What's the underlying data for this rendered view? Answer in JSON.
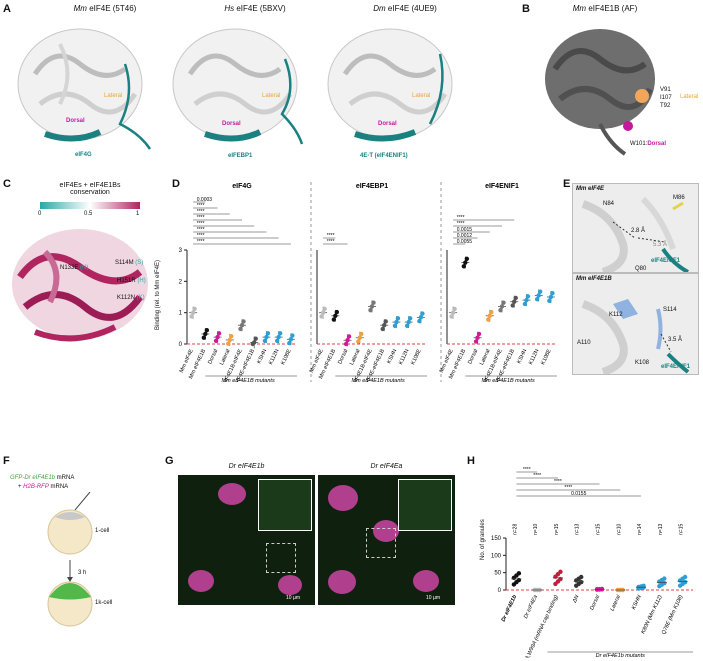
{
  "panelA": {
    "letter": "A",
    "structures": [
      {
        "species": "Mm",
        "title": "eIF4E (5T46)",
        "partner": "eIF4G"
      },
      {
        "species": "Hs",
        "title": "eIF4E (5BXV)",
        "partner": "eIFEBP1"
      },
      {
        "species": "Dm",
        "title": "eIF4E (4UE9)",
        "partner": "4E-T (eIF4ENIF1)"
      }
    ],
    "lateral": "Lateral",
    "dorsal": "Dorsal"
  },
  "panelB": {
    "letter": "B",
    "species": "Mm",
    "title": "eIF4E1B (AF)",
    "residues": [
      "V91",
      "I107",
      "T92"
    ],
    "lateral": "Lateral",
    "dorsal_residue": "W101:",
    "dorsal": "Dorsal"
  },
  "panelC": {
    "letter": "C",
    "title_line1": "eIF4Es + eIF4E1Bs",
    "title_line2": "conservation",
    "scale_ticks": [
      "0",
      "0.5",
      "1"
    ],
    "labels": [
      {
        "text": "N133E",
        "code": "(N)"
      },
      {
        "text": "S114M",
        "code": "(S)"
      },
      {
        "text": "H151R",
        "code": "(H)"
      },
      {
        "text": "K112N",
        "code": "(K)"
      }
    ]
  },
  "panelD": {
    "letter": "D",
    "ylabel": "Binding (rel. to Mm eIF4E)",
    "chart_data": [
      {
        "type": "scatter",
        "title": "eIF4G",
        "ylim": [
          0,
          3
        ],
        "categories": [
          "Mm eIF4E",
          "Mm eIF4E1B",
          "Dorsal",
          "Lateral",
          "eIF4E1B-eIF4E",
          "eIF4E-eIF4E1B",
          "KSHN",
          "K112N",
          "K108E"
        ],
        "means": [
          1.0,
          0.32,
          0.22,
          0.13,
          0.6,
          0.05,
          0.22,
          0.22,
          0.15
        ],
        "pvalues": [
          "0.0003",
          "****",
          "****",
          "****",
          "****",
          "****",
          "****",
          "****"
        ],
        "group_label": "Mm eIF4E1B mutants"
      },
      {
        "type": "scatter",
        "title": "eIF4EBP1",
        "ylim": [
          0,
          3
        ],
        "categories": [
          "Mm eIF4E",
          "Mm eIF4E1B",
          "Dorsal",
          "Lateral",
          "eIF4E1B-eIF4E",
          "eIF4E-eIF4E1B",
          "KSHN",
          "K112N",
          "K108E"
        ],
        "means": [
          1.0,
          0.9,
          0.12,
          0.2,
          1.2,
          0.6,
          0.7,
          0.7,
          0.85
        ],
        "pvalues": [
          "****",
          "****"
        ],
        "group_label": "Mm eIF4E1B mutants"
      },
      {
        "type": "scatter",
        "title": "eIF4ENIF1",
        "ylim": [
          0,
          3
        ],
        "categories": [
          "Mm eIF4E",
          "Mm eIF4E1B",
          "Dorsal",
          "Lateral",
          "eIF4E1B-eIF4E",
          "eIF4E-eIF4E1B",
          "KSHN",
          "K112N",
          "K108E"
        ],
        "means": [
          1.0,
          2.6,
          0.2,
          0.9,
          1.2,
          1.35,
          1.4,
          1.55,
          1.5
        ],
        "pvalues": [
          "****",
          "****",
          "0.0015",
          "0.0012",
          "0.0055"
        ],
        "group_label": "Mm eIF4E1B mutants"
      }
    ],
    "ticks": [
      "0",
      "1",
      "2",
      "3"
    ]
  },
  "panelE": {
    "letter": "E",
    "top": {
      "title": "Mm eIF4E",
      "residues": [
        "N84",
        "M86",
        "Q80"
      ],
      "d1": "2.8 Å",
      "d2": "5.3 Å",
      "partner": "eIF4ENIF1"
    },
    "bottom": {
      "title": "Mm eIF4E1B",
      "residues": [
        "K112",
        "S114",
        "A110",
        "K108"
      ],
      "d1": "3.5 Å",
      "partner": "eIF4ENIF1"
    }
  },
  "panelF": {
    "letter": "F",
    "mrna1": "GFP-Dr eIF4E1b",
    "mrna1_suffix": " mRNA",
    "mrna2_prefix": "+ ",
    "mrna2": "H2B-RFP",
    "mrna2_suffix": " mRNA",
    "stage1": "1-cell",
    "time": "3 h",
    "stage2": "1k-cell"
  },
  "panelG": {
    "letter": "G",
    "left_title": "Dr eIF4E1b",
    "right_title": "Dr eIF4Ea",
    "scale_label": "10 µm"
  },
  "panelH": {
    "letter": "H",
    "ylabel": "No. of granules",
    "xgroup_label": "Dr eIF4E1b mutants",
    "chart_data": {
      "type": "scatter",
      "ylim": [
        0,
        150
      ],
      "yticks": [
        "0",
        "50",
        "100",
        "150"
      ],
      "categories": [
        "Dr eIF4E1b",
        "Dr eIF4Ea",
        "W63A,W99A (mRNA cap binding)",
        "ΔN",
        "Dorsal",
        "Lateral",
        "KSHN",
        "K80N (Mm K112)",
        "Q76E (Mm K108)"
      ],
      "n": [
        "n=28",
        "n=10",
        "n=15",
        "n=13",
        "n=15",
        "n=10",
        "n=14",
        "n=13",
        "n=15"
      ],
      "means": [
        32,
        0,
        35,
        25,
        2,
        0,
        8,
        22,
        25
      ],
      "pvalues": [
        "****",
        "****",
        "****",
        "****",
        "0.0155"
      ]
    }
  }
}
